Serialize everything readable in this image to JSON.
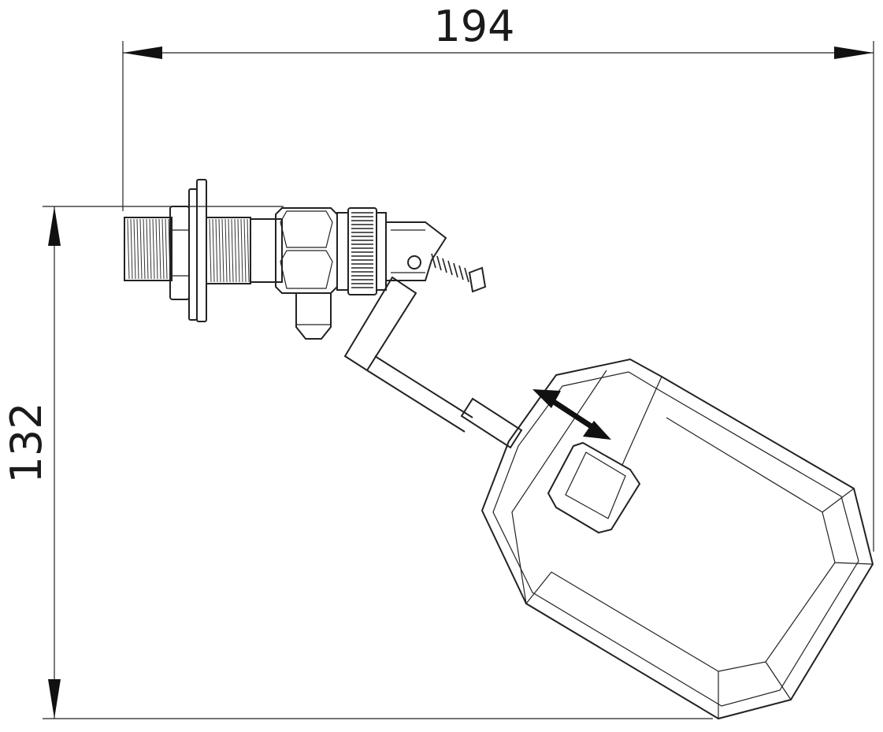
{
  "dimensions": {
    "width_label": "194",
    "height_label": "132"
  },
  "colors": {
    "line": "#222222",
    "background": "#ffffff"
  }
}
